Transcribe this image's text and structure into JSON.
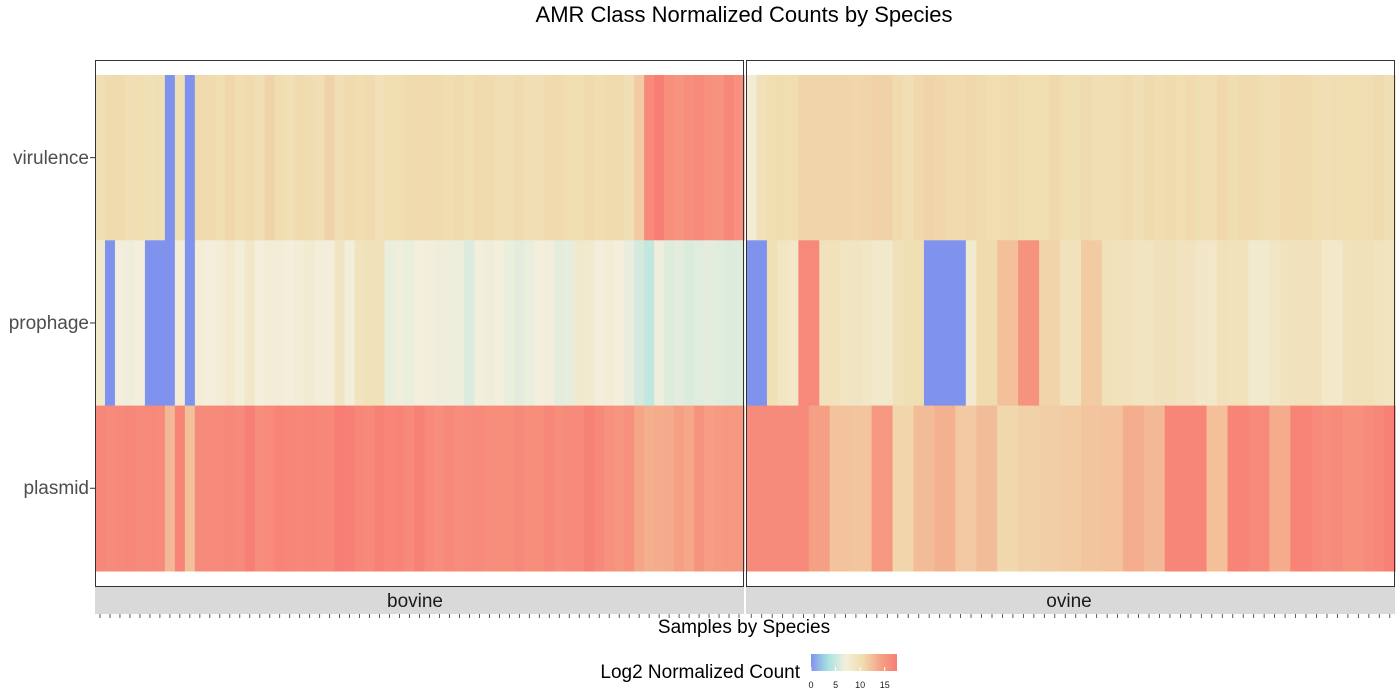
{
  "chart_data": {
    "type": "heatmap",
    "title": "AMR Class Normalized Counts by Species",
    "xlabel": "Samples by Species",
    "rows": [
      "virulence",
      "prophage",
      "plasmid"
    ],
    "legend": {
      "title": "Log2 Normalized Count",
      "position": "bottom",
      "ticks": [
        0,
        5,
        10,
        15
      ],
      "range": [
        0,
        17.5
      ],
      "colors": [
        "#7f93ee",
        "#a8e3e0",
        "#f3efdc",
        "#f0ddb0",
        "#f5a486",
        "#f87d74"
      ]
    },
    "panels": [
      {
        "label": "bovine",
        "values": {
          "virulence": [
            10.2,
            10.6,
            10.6,
            10.2,
            10.4,
            10.0,
            10.2,
            0,
            10.1,
            0,
            10.7,
            10.7,
            10.5,
            10.9,
            10.5,
            10.7,
            10.2,
            11.1,
            10.5,
            10.0,
            10.7,
            10.5,
            10.2,
            11.2,
            10.2,
            10.7,
            10.5,
            10.7,
            9.9,
            10.4,
            10.5,
            10.6,
            10.7,
            10.6,
            10.6,
            10.4,
            10.6,
            10.4,
            10.7,
            10.6,
            10.3,
            10.3,
            10.6,
            10.2,
            10.1,
            10.6,
            10.7,
            10.5,
            10.4,
            10.7,
            10.4,
            10.6,
            10.6,
            10.2,
            11.6,
            16.3,
            17.5,
            15.9,
            15.4,
            16.0,
            16.4,
            15.8,
            15.5,
            16.5,
            15.8
          ],
          "prophage": [
            8.2,
            0,
            7.1,
            6.8,
            7.0,
            0,
            0,
            0,
            7.4,
            0,
            7.3,
            7.0,
            7.3,
            8.1,
            7.2,
            8.6,
            7.0,
            7.4,
            7.4,
            7.0,
            7.3,
            7.9,
            7.2,
            7.1,
            9.1,
            7.1,
            9.4,
            9.7,
            9.7,
            6.6,
            6.8,
            6.6,
            7.0,
            6.9,
            6.8,
            6.7,
            6.7,
            5.9,
            7.0,
            6.8,
            7.0,
            6.6,
            6.3,
            6.6,
            7.0,
            7.1,
            6.3,
            6.4,
            8.3,
            8.0,
            7.1,
            7.4,
            7.0,
            6.5,
            5.6,
            4.7,
            6.7,
            6.0,
            6.3,
            5.9,
            6.1,
            6.3,
            6.1,
            5.9,
            6.0
          ],
          "plasmid": [
            16.6,
            16.2,
            16.4,
            16.6,
            16.2,
            16.4,
            16.3,
            12.7,
            16.9,
            12.3,
            16.2,
            16.2,
            16.3,
            16.5,
            16.2,
            17.3,
            16.0,
            16.3,
            17.0,
            16.8,
            16.6,
            16.8,
            16.6,
            16.6,
            17.5,
            17.3,
            16.5,
            16.4,
            17.1,
            16.7,
            16.9,
            16.3,
            17.1,
            16.3,
            16.1,
            16.4,
            16.1,
            16.2,
            16.3,
            16.0,
            16.1,
            16.1,
            16.4,
            16.1,
            16.1,
            16.5,
            16.0,
            16.3,
            16.3,
            17.1,
            16.4,
            15.7,
            15.3,
            15.8,
            13.9,
            13.3,
            13.5,
            13.6,
            14.4,
            13.8,
            15.5,
            14.6,
            14.9,
            15.2,
            15.1
          ]
        }
      },
      {
        "label": "ovine",
        "values": {
          "virulence": [
            7.6,
            9.8,
            10.5,
            10.5,
            10.5,
            11.0,
            11.0,
            11.0,
            11.0,
            11.0,
            10.9,
            11.0,
            11.2,
            11.2,
            10.7,
            10.2,
            10.8,
            11.1,
            10.9,
            10.6,
            10.7,
            10.8,
            10.6,
            10.4,
            10.5,
            10.7,
            10.4,
            10.5,
            10.4,
            10.8,
            10.5,
            10.3,
            10.6,
            10.2,
            10.4,
            10.3,
            10.6,
            10.2,
            10.6,
            10.5,
            10.6,
            10.4,
            10.7,
            10.3,
            10.5,
            10.8,
            10.3,
            10.6,
            10.6,
            10.3,
            10.3,
            10.7,
            10.6,
            10.6,
            10.5,
            10.1,
            10.3,
            10.4,
            10.3,
            10.3,
            10.6,
            10.2
          ],
          "prophage": [
            0,
            0,
            10.0,
            9.0,
            8.6,
            16.4,
            16.4,
            9.6,
            9.6,
            9.0,
            9.1,
            8.8,
            8.3,
            8.3,
            9.7,
            10.2,
            10.3,
            0,
            0,
            0,
            0,
            8.0,
            10.6,
            10.6,
            12.3,
            12.3,
            15.5,
            15.5,
            11.0,
            11.0,
            9.5,
            9.5,
            11.6,
            11.6,
            9.8,
            9.6,
            9.6,
            9.2,
            9.2,
            9.7,
            9.7,
            9.3,
            9.3,
            8.5,
            8.6,
            9.9,
            9.6,
            9.6,
            8.0,
            8.0,
            8.8,
            9.4,
            9.6,
            9.5,
            9.5,
            8.4,
            8.4,
            9.6,
            9.7,
            9.7,
            9.4,
            9.2
          ],
          "plasmid": [
            16.2,
            16.2,
            16.2,
            16.2,
            16.2,
            16.3,
            14.4,
            14.4,
            12.1,
            12.1,
            12.0,
            12.0,
            15.2,
            15.2,
            10.9,
            10.9,
            12.5,
            12.5,
            13.2,
            13.2,
            11.7,
            11.7,
            12.5,
            12.5,
            10.8,
            10.8,
            11.2,
            11.2,
            11.4,
            11.4,
            11.6,
            11.6,
            12.0,
            12.0,
            12.1,
            12.1,
            13.4,
            13.4,
            12.7,
            12.7,
            16.8,
            16.8,
            16.8,
            16.8,
            12.3,
            12.3,
            17.0,
            17.0,
            16.3,
            16.3,
            13.5,
            13.5,
            16.9,
            16.9,
            16.3,
            16.0,
            16.2,
            15.8,
            15.8,
            16.2,
            16.5,
            17.2
          ]
        }
      }
    ]
  }
}
